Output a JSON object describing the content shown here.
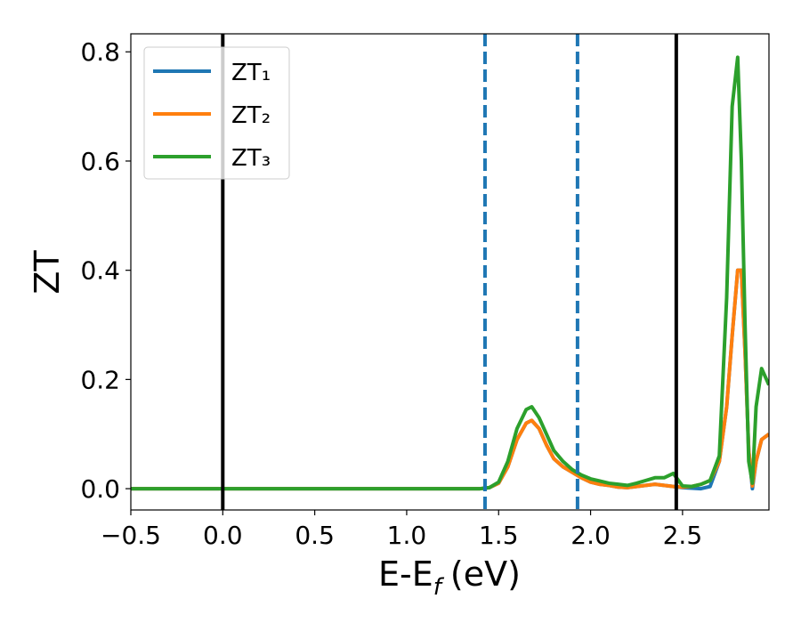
{
  "chart_data": {
    "type": "line",
    "xlabel": {
      "text": "E-E",
      "subscript": "f",
      "unit": "(eV)"
    },
    "ylabel": "ZT",
    "xlim": [
      -0.5,
      2.97
    ],
    "ylim": [
      -0.039,
      0.833
    ],
    "xticks": [
      {
        "value": -0.5,
        "label": "−0.5"
      },
      {
        "value": 0,
        "label": "0.0"
      },
      0.5,
      {
        "value": 1,
        "label": "1.0"
      },
      1.5,
      {
        "value": 2,
        "label": "2.0"
      },
      2.5
    ],
    "yticks": [
      {
        "value": 0,
        "label": "0.0"
      },
      0.2,
      0.4,
      0.6,
      0.8
    ],
    "legend": "upper left",
    "vlines": [
      {
        "x": 0,
        "color": "#000000",
        "style": "solid"
      },
      {
        "x": 2.466,
        "color": "#000000",
        "style": "solid"
      },
      {
        "x": 1.426,
        "color": "#1f77b4",
        "style": "dashed"
      },
      {
        "x": 1.929,
        "color": "#1f77b4",
        "style": "dashed"
      }
    ],
    "x": [
      -0.5,
      1.4,
      1.45,
      1.5,
      1.55,
      1.6,
      1.65,
      1.68,
      1.72,
      1.76,
      1.8,
      1.85,
      1.9,
      1.95,
      2.0,
      2.05,
      2.1,
      2.15,
      2.2,
      2.25,
      2.3,
      2.35,
      2.4,
      2.45,
      2.5,
      2.55,
      2.6,
      2.65,
      2.7,
      2.74,
      2.77,
      2.8,
      2.82,
      2.84,
      2.86,
      2.88,
      2.9,
      2.93,
      2.97
    ],
    "series": [
      {
        "name": "ZT₁",
        "color": "#1f77b4",
        "values": [
          0,
          0,
          0.002,
          0.01,
          0.04,
          0.09,
          0.12,
          0.125,
          0.11,
          0.08,
          0.055,
          0.04,
          0.03,
          0.02,
          0.012,
          0.008,
          0.006,
          0.003,
          0.002,
          0.004,
          0.006,
          0.008,
          0.006,
          0.004,
          0.002,
          0.001,
          0,
          0.004,
          0.05,
          0.15,
          0.28,
          0.4,
          0.4,
          0.25,
          0.07,
          0,
          0.05,
          0.09,
          0.1
        ]
      },
      {
        "name": "ZT₂",
        "color": "#ff7f0e",
        "values": [
          0,
          0,
          0.002,
          0.01,
          0.04,
          0.09,
          0.12,
          0.125,
          0.11,
          0.08,
          0.055,
          0.04,
          0.03,
          0.02,
          0.012,
          0.008,
          0.006,
          0.003,
          0.002,
          0.004,
          0.006,
          0.008,
          0.006,
          0.004,
          0.003,
          0.004,
          0.008,
          0.015,
          0.05,
          0.15,
          0.28,
          0.4,
          0.4,
          0.25,
          0.07,
          0.005,
          0.05,
          0.09,
          0.1
        ]
      },
      {
        "name": "ZT₃",
        "color": "#2ca02c",
        "values": [
          0,
          0,
          0.002,
          0.012,
          0.05,
          0.11,
          0.145,
          0.15,
          0.13,
          0.1,
          0.07,
          0.05,
          0.035,
          0.025,
          0.018,
          0.014,
          0.01,
          0.008,
          0.006,
          0.01,
          0.015,
          0.02,
          0.02,
          0.028,
          0.005,
          0.004,
          0.008,
          0.015,
          0.06,
          0.35,
          0.7,
          0.79,
          0.6,
          0.3,
          0.05,
          0.01,
          0.15,
          0.22,
          0.19
        ]
      }
    ]
  }
}
